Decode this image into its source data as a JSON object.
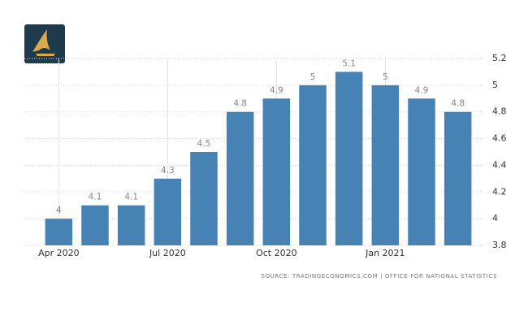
{
  "chart_data": {
    "type": "bar",
    "categories": [
      "Apr 2020",
      null,
      null,
      "Jul 2020",
      null,
      null,
      "Oct 2020",
      null,
      null,
      "Jan 2021",
      null,
      null
    ],
    "values": [
      4,
      4.1,
      4.1,
      4.3,
      4.5,
      4.8,
      4.9,
      5,
      5.1,
      5,
      4.9,
      4.8
    ],
    "color": "#4682b4",
    "ylim": [
      3.8,
      5.2
    ],
    "yticks": [
      3.8,
      4,
      4.2,
      4.4,
      4.6,
      4.8,
      5,
      5.2
    ],
    "grid": true,
    "source": "SOURCE: TRADINGECONOMICS.COM | OFFICE FOR NATIONAL STATISTICS"
  }
}
